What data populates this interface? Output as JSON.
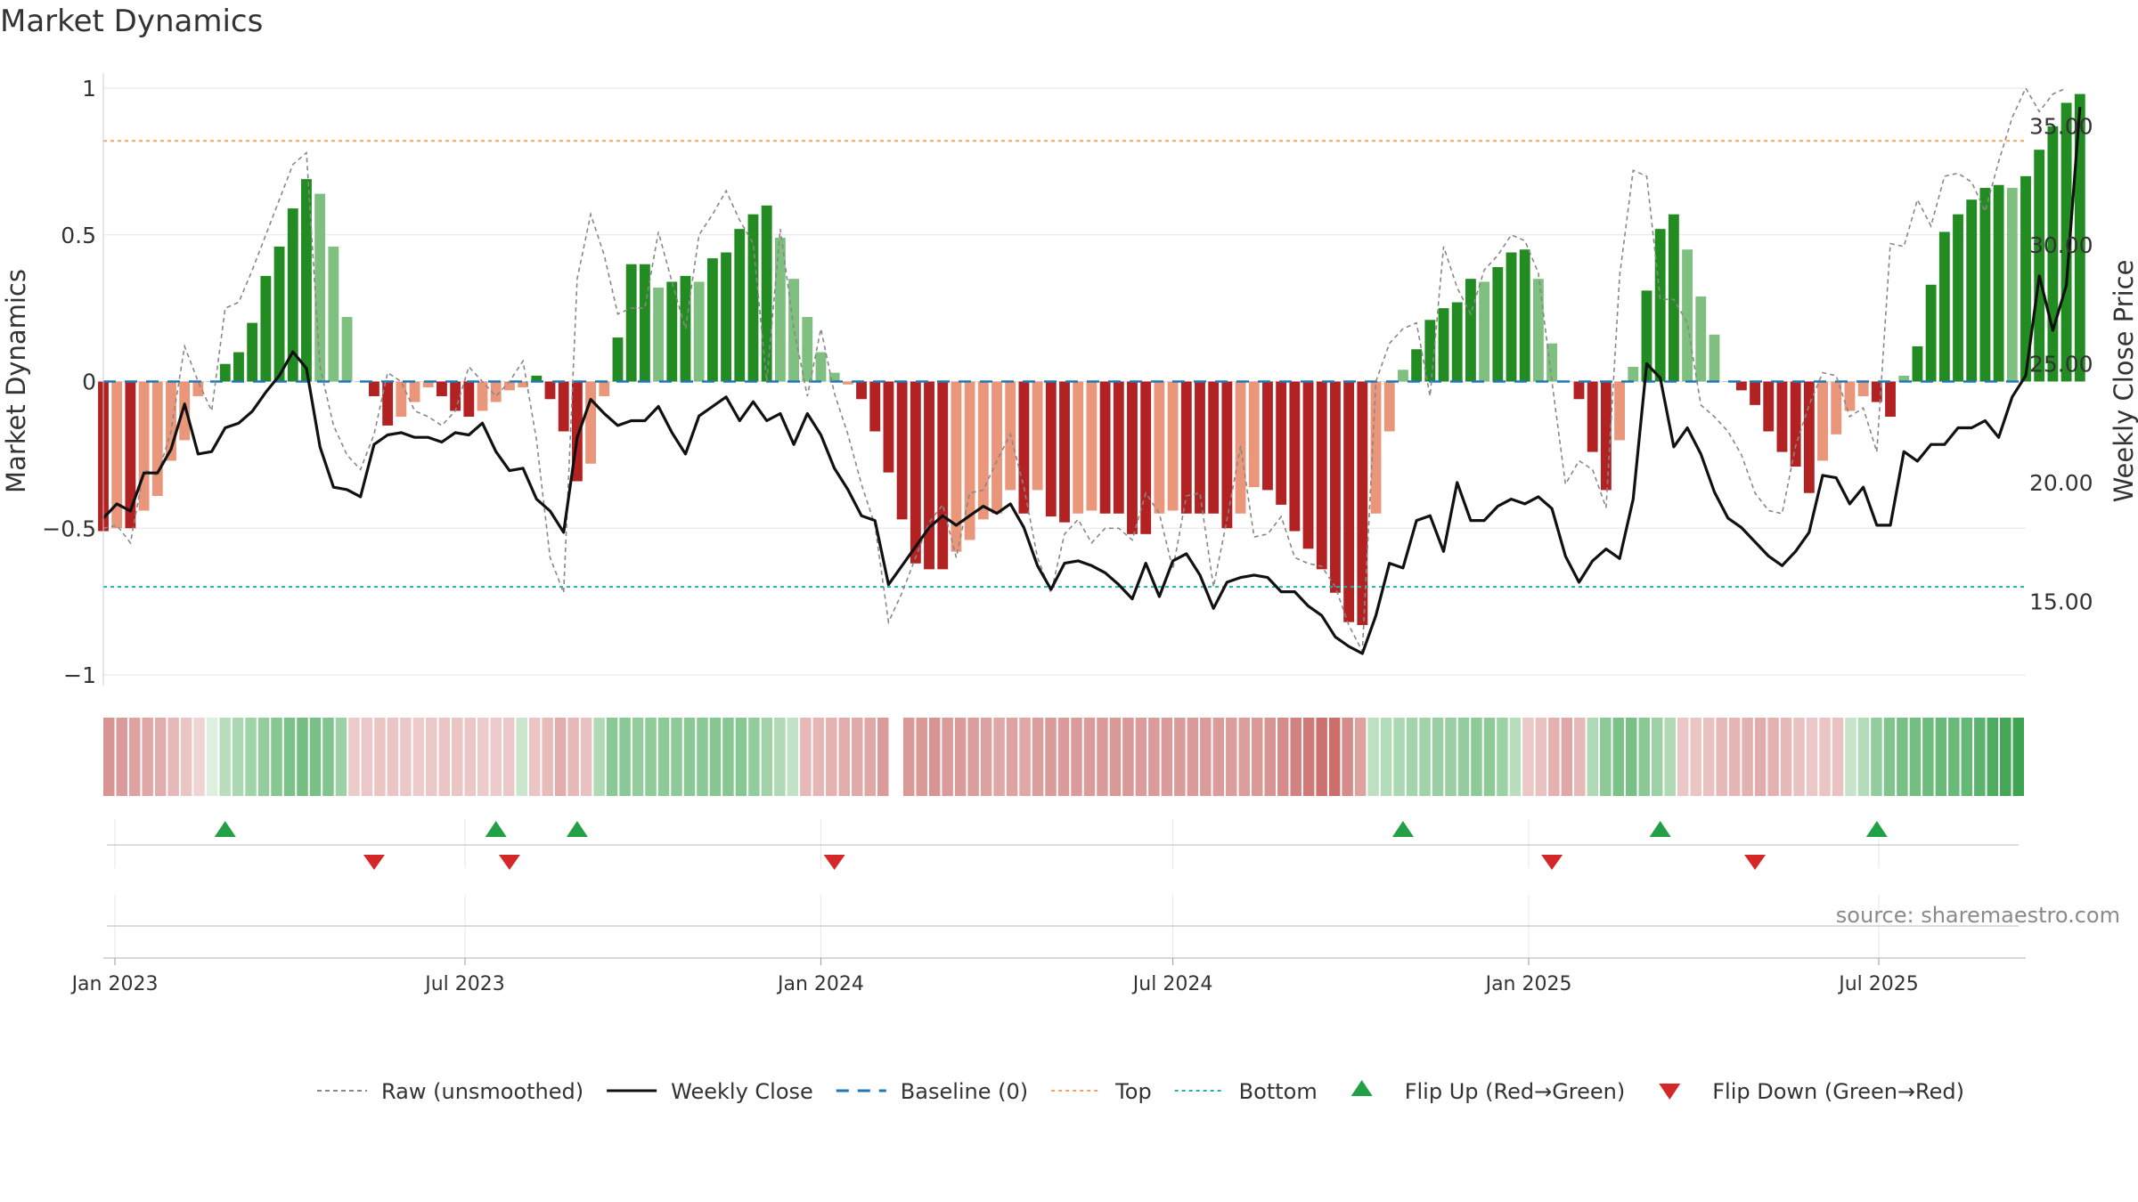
{
  "title": "Market Dynamics",
  "source": "source: sharemaestro.com",
  "colors": {
    "strong_green": "#228b22",
    "light_green": "#7fbf7f",
    "strong_red": "#b22222",
    "light_red": "#e9967a",
    "close": "#111111",
    "raw": "#888888",
    "baseline": "#1f77b4",
    "top": "#f4a460",
    "bottom": "#20b2aa",
    "flip_up": "#22a046",
    "flip_down": "#d62728"
  },
  "chart_data": {
    "type": "bar",
    "ylabel": "Market Dynamics",
    "y2label": "Weekly Close Price",
    "ylim": [
      -1.0,
      1.0
    ],
    "y2lim": [
      11.9,
      36.6
    ],
    "yticks": [
      {
        "v": 1,
        "label": "1"
      },
      {
        "v": 0.5,
        "label": "0.5"
      },
      {
        "v": 0,
        "label": "0"
      },
      {
        "v": -0.5,
        "label": "−0.5"
      },
      {
        "v": -1,
        "label": "−1"
      }
    ],
    "y2ticks": [
      {
        "v": 35,
        "label": "35.00"
      },
      {
        "v": 30,
        "label": "30.00"
      },
      {
        "v": 25,
        "label": "25.00"
      },
      {
        "v": 20,
        "label": "20.00"
      },
      {
        "v": 15,
        "label": "15.00"
      }
    ],
    "x_start": "2022-12-26",
    "x_end": "2025-09-15",
    "xticks": [
      {
        "date": "2023-01-01",
        "label": "Jan 2023"
      },
      {
        "date": "2023-07-01",
        "label": "Jul 2023"
      },
      {
        "date": "2024-01-01",
        "label": "Jan 2024"
      },
      {
        "date": "2024-07-01",
        "label": "Jul 2024"
      },
      {
        "date": "2025-01-01",
        "label": "Jan 2025"
      },
      {
        "date": "2025-07-01",
        "label": "Jul 2025"
      }
    ],
    "top_level": 0.82,
    "bottom_level": -0.7,
    "baseline": 0,
    "weeks_start": "2022-12-26",
    "dynamics": [
      -0.51,
      -0.5,
      -0.5,
      -0.44,
      -0.39,
      -0.27,
      -0.2,
      -0.05,
      0.0,
      0.06,
      0.1,
      0.2,
      0.36,
      0.46,
      0.59,
      0.69,
      0.64,
      0.46,
      0.22,
      0.0,
      -0.05,
      -0.15,
      -0.12,
      -0.07,
      -0.02,
      -0.05,
      -0.1,
      -0.12,
      -0.1,
      -0.07,
      -0.03,
      -0.02,
      0.02,
      -0.06,
      -0.17,
      -0.34,
      -0.28,
      -0.05,
      0.15,
      0.4,
      0.4,
      0.32,
      0.34,
      0.36,
      0.34,
      0.42,
      0.44,
      0.52,
      0.57,
      0.6,
      0.49,
      0.35,
      0.22,
      0.1,
      0.03,
      -0.01,
      -0.06,
      -0.17,
      -0.31,
      -0.47,
      -0.62,
      -0.64,
      -0.64,
      -0.58,
      -0.54,
      -0.47,
      -0.45,
      -0.37,
      -0.45,
      -0.37,
      -0.46,
      -0.48,
      -0.45,
      -0.44,
      -0.45,
      -0.45,
      -0.52,
      -0.52,
      -0.45,
      -0.44,
      -0.45,
      -0.45,
      -0.45,
      -0.5,
      -0.45,
      -0.36,
      -0.37,
      -0.42,
      -0.51,
      -0.57,
      -0.64,
      -0.72,
      -0.82,
      -0.83,
      -0.45,
      -0.17,
      0.04,
      0.11,
      0.21,
      0.25,
      0.27,
      0.35,
      0.34,
      0.39,
      0.44,
      0.45,
      0.35,
      0.13,
      0.0,
      -0.06,
      -0.24,
      -0.37,
      -0.2,
      0.05,
      0.31,
      0.52,
      0.57,
      0.45,
      0.29,
      0.16,
      0.0,
      -0.03,
      -0.08,
      -0.17,
      -0.24,
      -0.29,
      -0.38,
      -0.27,
      -0.18,
      -0.1,
      -0.05,
      -0.07,
      -0.12,
      0.02,
      0.12,
      0.33,
      0.51,
      0.57,
      0.62,
      0.66,
      0.67,
      0.66,
      0.7,
      0.79,
      0.87,
      0.95,
      0.98
    ],
    "weekly_close": [
      18.5,
      19.1,
      18.8,
      20.4,
      20.4,
      21.4,
      23.3,
      21.2,
      21.3,
      22.3,
      22.5,
      23.0,
      23.8,
      24.5,
      25.5,
      24.8,
      21.5,
      19.8,
      19.7,
      19.4,
      21.6,
      22.0,
      22.1,
      21.9,
      21.9,
      21.7,
      22.1,
      22.0,
      22.5,
      21.3,
      20.5,
      20.6,
      19.3,
      18.8,
      17.9,
      21.9,
      23.5,
      22.9,
      22.4,
      22.6,
      22.6,
      23.2,
      22.1,
      21.2,
      22.8,
      23.2,
      23.6,
      22.6,
      23.4,
      22.6,
      22.9,
      21.6,
      22.9,
      22.0,
      20.6,
      19.7,
      18.6,
      18.4,
      15.7,
      16.5,
      17.3,
      18.1,
      18.6,
      18.2,
      18.6,
      19.0,
      18.7,
      19.1,
      18.1,
      16.5,
      15.5,
      16.6,
      16.7,
      16.5,
      16.2,
      15.7,
      15.1,
      16.6,
      15.2,
      16.7,
      17.0,
      16.1,
      14.7,
      15.8,
      16.0,
      16.1,
      16.0,
      15.4,
      15.4,
      14.8,
      14.4,
      13.5,
      13.1,
      12.8,
      14.4,
      16.6,
      16.4,
      18.4,
      18.6,
      17.1,
      20.0,
      18.4,
      18.4,
      19.0,
      19.3,
      19.1,
      19.4,
      18.9,
      16.9,
      15.8,
      16.7,
      17.2,
      16.8,
      19.3,
      25.0,
      24.4,
      21.5,
      22.3,
      21.2,
      19.6,
      18.5,
      18.1,
      17.5,
      16.9,
      16.5,
      17.1,
      17.9,
      20.3,
      20.2,
      19.1,
      19.8,
      18.2,
      18.2,
      21.3,
      20.9,
      21.6,
      21.6,
      22.3,
      22.3,
      22.6,
      21.9,
      23.6,
      24.5,
      28.7,
      26.4,
      28.3,
      35.8
    ],
    "raw": [
      -0.5,
      -0.49,
      -0.55,
      -0.3,
      -0.32,
      -0.17,
      0.12,
      0.0,
      -0.1,
      0.25,
      0.27,
      0.38,
      0.5,
      0.62,
      0.74,
      0.78,
      0.05,
      -0.15,
      -0.25,
      -0.3,
      -0.18,
      0.03,
      0.0,
      -0.1,
      -0.12,
      -0.15,
      -0.1,
      0.05,
      0.0,
      -0.05,
      0.0,
      0.07,
      -0.2,
      -0.6,
      -0.72,
      0.35,
      0.57,
      0.43,
      0.23,
      0.25,
      0.25,
      0.51,
      0.34,
      0.18,
      0.5,
      0.57,
      0.65,
      0.55,
      0.47,
      0.0,
      0.52,
      0.18,
      -0.05,
      0.18,
      -0.04,
      -0.18,
      -0.35,
      -0.49,
      -0.82,
      -0.72,
      -0.6,
      -0.48,
      -0.42,
      -0.6,
      -0.38,
      -0.37,
      -0.27,
      -0.18,
      -0.36,
      -0.6,
      -0.72,
      -0.52,
      -0.47,
      -0.55,
      -0.5,
      -0.5,
      -0.54,
      -0.38,
      -0.45,
      -0.64,
      -0.39,
      -0.38,
      -0.7,
      -0.47,
      -0.22,
      -0.53,
      -0.52,
      -0.46,
      -0.6,
      -0.62,
      -0.63,
      -0.7,
      -0.83,
      -0.92,
      0.0,
      0.13,
      0.18,
      0.2,
      -0.05,
      0.46,
      0.32,
      0.23,
      0.38,
      0.43,
      0.5,
      0.48,
      0.37,
      0.0,
      -0.35,
      -0.27,
      -0.3,
      -0.43,
      0.36,
      0.72,
      0.7,
      0.28,
      0.28,
      0.2,
      -0.08,
      -0.12,
      -0.17,
      -0.25,
      -0.38,
      -0.44,
      -0.45,
      -0.22,
      -0.08,
      0.03,
      0.02,
      -0.12,
      -0.09,
      -0.24,
      0.47,
      0.46,
      0.62,
      0.53,
      0.7,
      0.71,
      0.68,
      0.58,
      0.75,
      0.9,
      1.0,
      0.92,
      0.98,
      1.0
    ],
    "strip_levels": [
      -0.55,
      -0.5,
      -0.45,
      -0.42,
      -0.38,
      -0.3,
      -0.22,
      -0.12,
      0.05,
      0.25,
      0.32,
      0.38,
      0.45,
      0.52,
      0.58,
      0.62,
      0.6,
      0.55,
      0.4,
      -0.18,
      -0.2,
      -0.22,
      -0.22,
      -0.2,
      -0.18,
      -0.2,
      -0.22,
      -0.22,
      -0.2,
      -0.18,
      -0.18,
      -0.2,
      0.15,
      -0.22,
      -0.28,
      -0.38,
      -0.3,
      -0.25,
      0.3,
      0.5,
      0.5,
      0.45,
      0.47,
      0.48,
      0.48,
      0.5,
      0.5,
      0.52,
      0.52,
      0.52,
      0.45,
      0.38,
      0.3,
      0.2,
      -0.3,
      -0.32,
      -0.35,
      -0.38,
      -0.4,
      -0.42,
      -0.5,
      "gap",
      -0.52,
      -0.52,
      -0.55,
      -0.5,
      -0.5,
      -0.48,
      -0.46,
      -0.42,
      -0.45,
      -0.42,
      -0.48,
      -0.5,
      -0.5,
      -0.5,
      -0.5,
      -0.5,
      -0.52,
      -0.52,
      -0.5,
      -0.5,
      -0.5,
      -0.5,
      -0.5,
      -0.5,
      -0.5,
      -0.48,
      -0.48,
      -0.52,
      -0.55,
      -0.6,
      -0.66,
      -0.72,
      -0.78,
      -0.8,
      -0.6,
      -0.45,
      0.22,
      0.28,
      0.32,
      0.36,
      0.38,
      0.42,
      0.42,
      0.45,
      0.48,
      0.48,
      0.4,
      0.25,
      -0.2,
      -0.25,
      -0.35,
      -0.42,
      -0.3,
      0.3,
      0.48,
      0.58,
      0.6,
      0.5,
      0.4,
      0.3,
      -0.2,
      -0.22,
      -0.25,
      -0.3,
      -0.32,
      -0.35,
      -0.38,
      -0.35,
      -0.3,
      -0.25,
      -0.2,
      -0.22,
      -0.25,
      0.18,
      0.28,
      0.45,
      0.55,
      0.6,
      0.62,
      0.65,
      0.68,
      0.68,
      0.7,
      0.75,
      0.82,
      0.88,
      0.92
    ],
    "flip_up": [
      "2023-02-27",
      "2023-07-17",
      "2023-08-28",
      "2024-10-28",
      "2025-03-10",
      "2025-06-30"
    ],
    "flip_down": [
      "2023-05-15",
      "2023-07-24",
      "2024-01-08",
      "2025-01-13",
      "2025-04-28"
    ]
  },
  "legend": [
    {
      "key": "raw",
      "label": "Raw (unsmoothed)",
      "style": "dashed-gray"
    },
    {
      "key": "close",
      "label": "Weekly Close",
      "style": "solid-black"
    },
    {
      "key": "baseline",
      "label": "Baseline (0)",
      "style": "dashed-blue"
    },
    {
      "key": "top",
      "label": "Top",
      "style": "dotted-orange"
    },
    {
      "key": "bottom",
      "label": "Bottom",
      "style": "dotted-teal"
    },
    {
      "key": "flip_up",
      "label": "Flip Up (Red→Green)",
      "style": "triangle-up"
    },
    {
      "key": "flip_down",
      "label": "Flip Down (Green→Red)",
      "style": "triangle-down"
    }
  ]
}
